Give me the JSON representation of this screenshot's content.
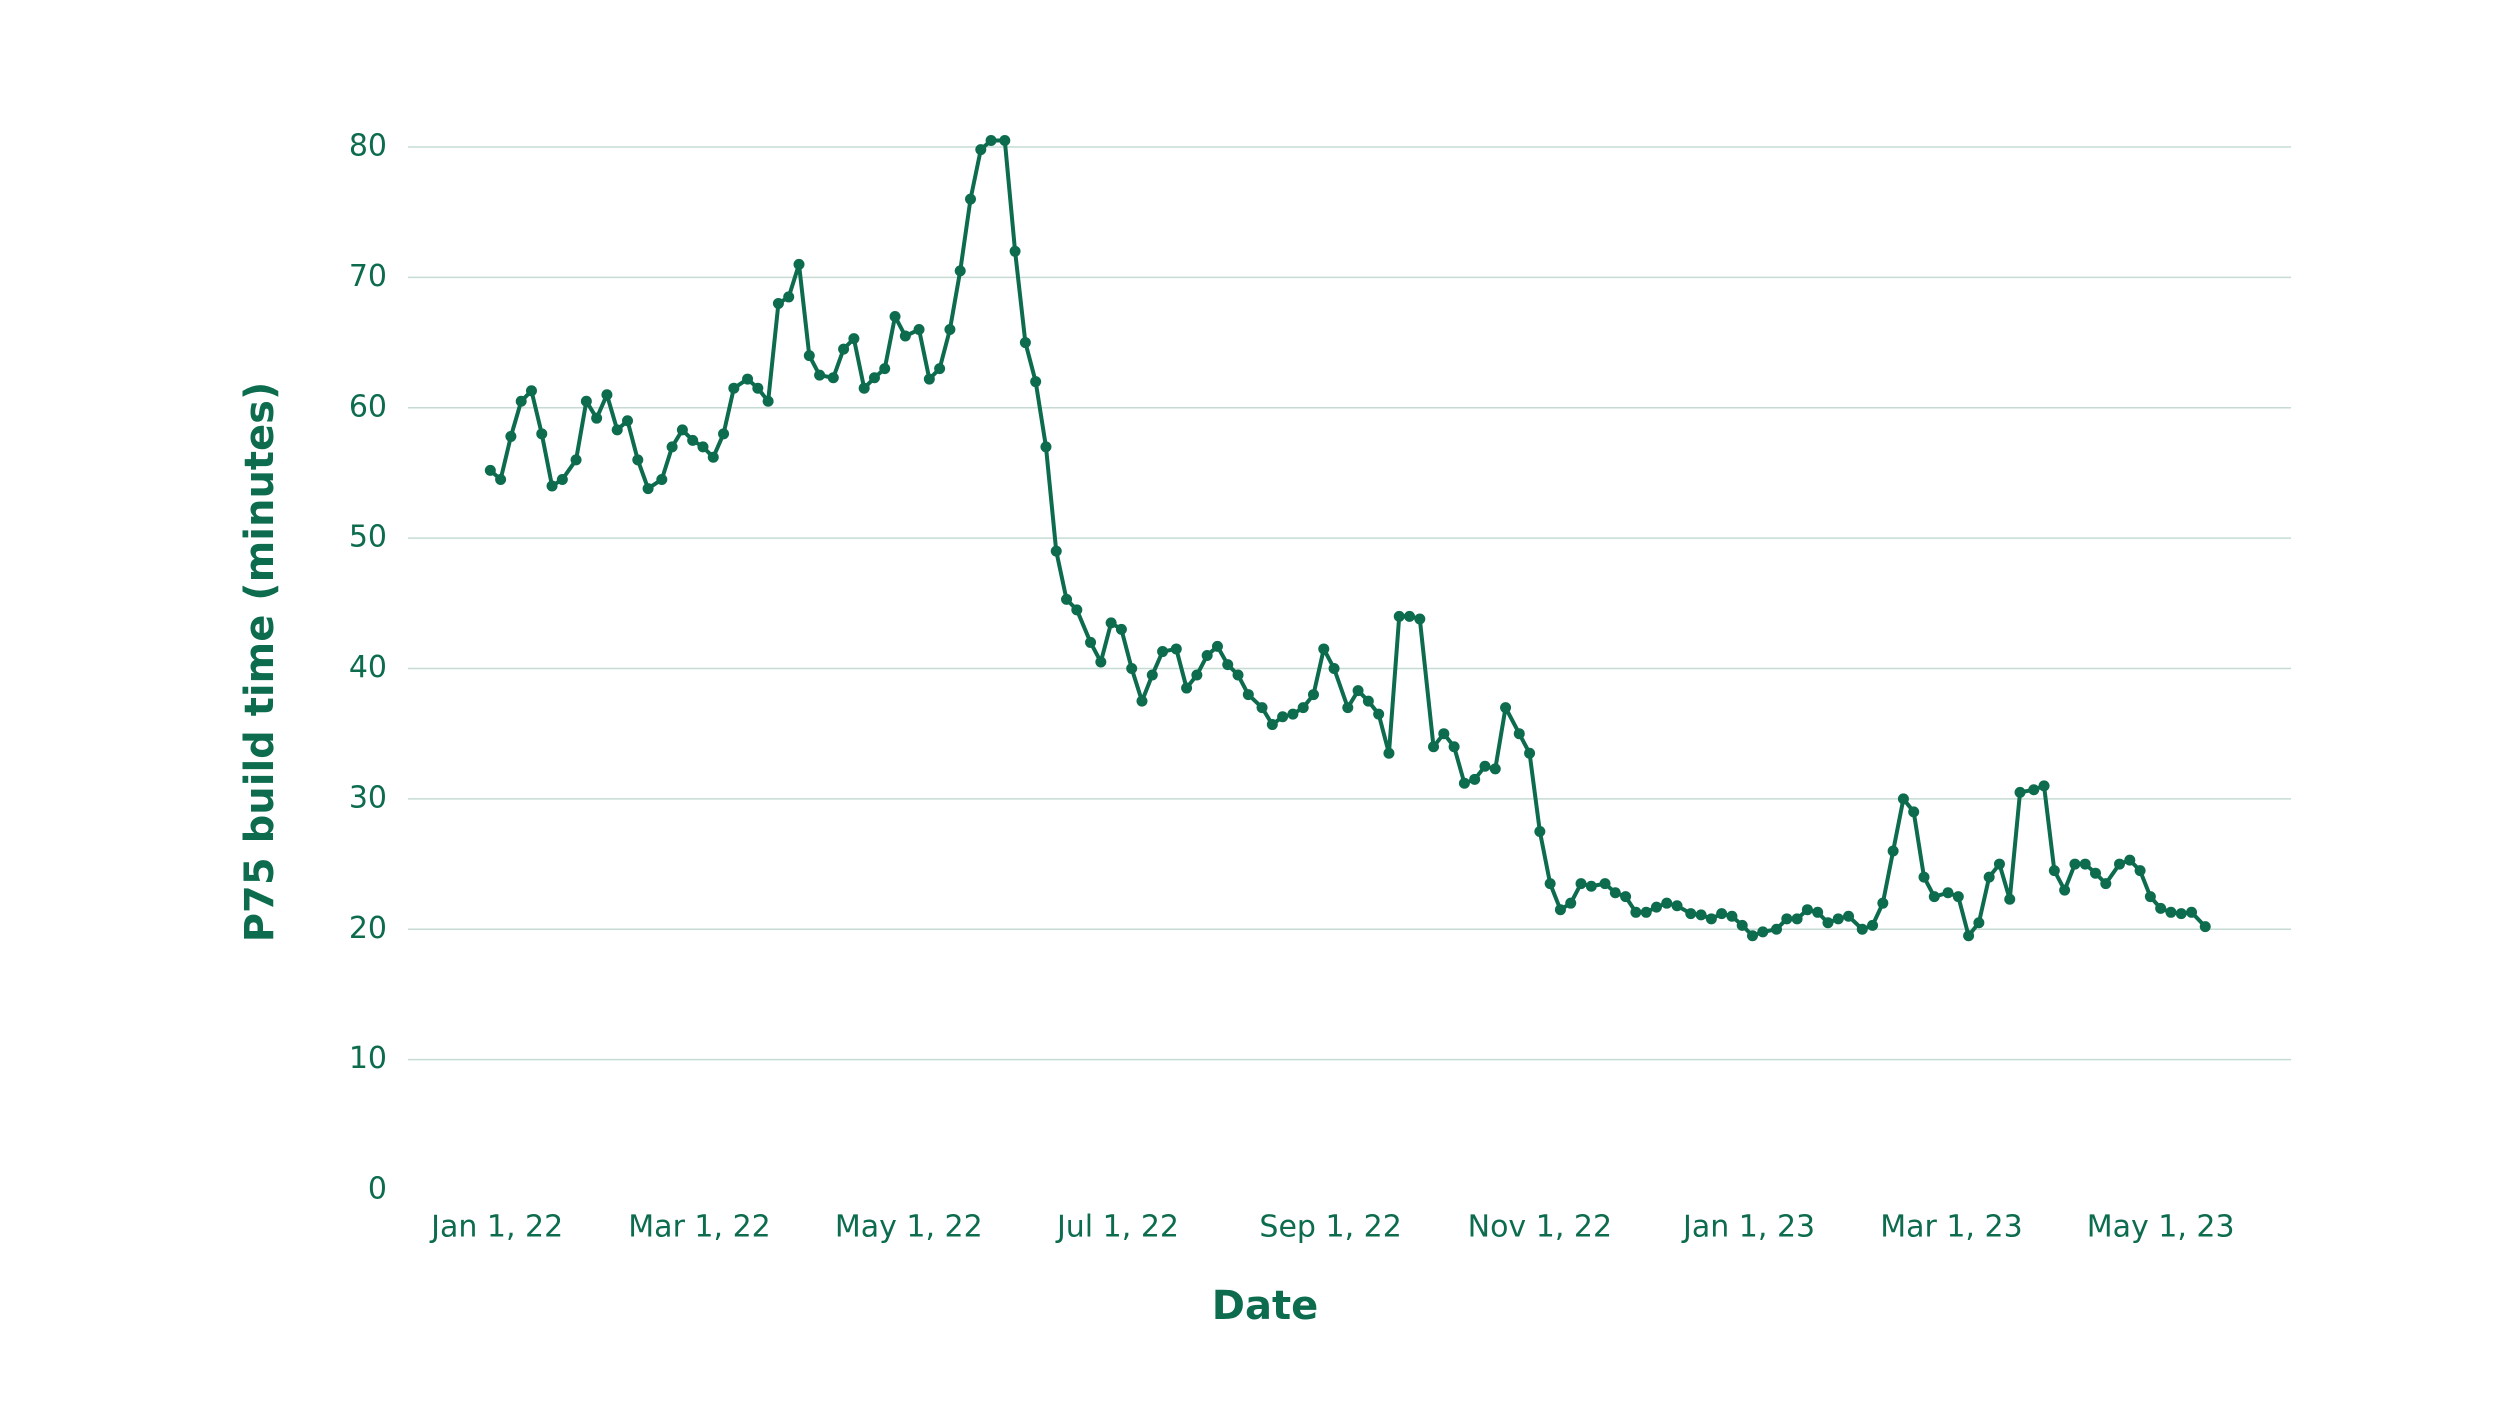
{
  "chart_data": {
    "type": "line",
    "xlabel": "Date",
    "ylabel": "P75 build time (minutes)",
    "x": [
      "2021-12-30",
      "2022-01-02",
      "2022-01-05",
      "2022-01-08",
      "2022-01-11",
      "2022-01-14",
      "2022-01-17",
      "2022-01-20",
      "2022-01-24",
      "2022-01-27",
      "2022-01-30",
      "2022-02-02",
      "2022-02-05",
      "2022-02-08",
      "2022-02-11",
      "2022-02-14",
      "2022-02-18",
      "2022-02-21",
      "2022-02-24",
      "2022-02-27",
      "2022-03-02",
      "2022-03-05",
      "2022-03-08",
      "2022-03-11",
      "2022-03-15",
      "2022-03-18",
      "2022-03-21",
      "2022-03-24",
      "2022-03-27",
      "2022-03-30",
      "2022-04-02",
      "2022-04-05",
      "2022-04-09",
      "2022-04-12",
      "2022-04-15",
      "2022-04-18",
      "2022-04-21",
      "2022-04-24",
      "2022-04-27",
      "2022-04-30",
      "2022-05-04",
      "2022-05-07",
      "2022-05-10",
      "2022-05-13",
      "2022-05-16",
      "2022-05-19",
      "2022-05-22",
      "2022-05-25",
      "2022-05-29",
      "2022-06-01",
      "2022-06-04",
      "2022-06-07",
      "2022-06-10",
      "2022-06-13",
      "2022-06-16",
      "2022-06-19",
      "2022-06-23",
      "2022-06-26",
      "2022-06-29",
      "2022-07-02",
      "2022-07-05",
      "2022-07-08",
      "2022-07-11",
      "2022-07-14",
      "2022-07-18",
      "2022-07-21",
      "2022-07-24",
      "2022-07-27",
      "2022-07-30",
      "2022-08-02",
      "2022-08-05",
      "2022-08-08",
      "2022-08-12",
      "2022-08-15",
      "2022-08-18",
      "2022-08-21",
      "2022-08-24",
      "2022-08-27",
      "2022-08-30",
      "2022-09-02",
      "2022-09-06",
      "2022-09-09",
      "2022-09-12",
      "2022-09-15",
      "2022-09-18",
      "2022-09-21",
      "2022-09-24",
      "2022-09-27",
      "2022-10-01",
      "2022-10-04",
      "2022-10-07",
      "2022-10-10",
      "2022-10-13",
      "2022-10-16",
      "2022-10-19",
      "2022-10-22",
      "2022-10-26",
      "2022-10-29",
      "2022-11-01",
      "2022-11-04",
      "2022-11-07",
      "2022-11-10",
      "2022-11-13",
      "2022-11-16",
      "2022-11-20",
      "2022-11-23",
      "2022-11-26",
      "2022-11-29",
      "2022-12-02",
      "2022-12-05",
      "2022-12-08",
      "2022-12-11",
      "2022-12-15",
      "2022-12-18",
      "2022-12-21",
      "2022-12-24",
      "2022-12-27",
      "2022-12-30",
      "2023-01-02",
      "2023-01-05",
      "2023-01-09",
      "2023-01-12",
      "2023-01-15",
      "2023-01-18",
      "2023-01-21",
      "2023-01-24",
      "2023-01-27",
      "2023-01-30",
      "2023-02-03",
      "2023-02-06",
      "2023-02-09",
      "2023-02-12",
      "2023-02-15",
      "2023-02-18",
      "2023-02-21",
      "2023-02-24",
      "2023-02-28",
      "2023-03-03",
      "2023-03-06",
      "2023-03-09",
      "2023-03-12",
      "2023-03-15",
      "2023-03-18",
      "2023-03-21",
      "2023-03-25",
      "2023-03-28",
      "2023-03-31",
      "2023-04-03",
      "2023-04-06",
      "2023-04-09",
      "2023-04-12",
      "2023-04-15",
      "2023-04-19",
      "2023-04-22",
      "2023-04-25",
      "2023-04-28",
      "2023-05-01",
      "2023-05-04",
      "2023-05-07",
      "2023-05-10",
      "2023-05-14"
    ],
    "series": [
      {
        "name": "P75 build time",
        "color": "#0d6b4e",
        "values": [
          55.2,
          54.5,
          57.8,
          60.5,
          61.3,
          58,
          54,
          54.5,
          56,
          60.5,
          59.2,
          61,
          58.3,
          59,
          56,
          53.8,
          54.5,
          57,
          58.3,
          57.5,
          57,
          56.2,
          58,
          61.5,
          62.2,
          61.5,
          60.5,
          68,
          68.5,
          71,
          64,
          62.5,
          62.3,
          64.5,
          65.3,
          61.5,
          62.3,
          63,
          67,
          65.5,
          66,
          62.2,
          63,
          66,
          70.5,
          76,
          79.8,
          80.5,
          80.5,
          72,
          65,
          62,
          57,
          49,
          45.3,
          44.5,
          42,
          40.5,
          43.5,
          43,
          40,
          37.5,
          39.5,
          41.3,
          41.5,
          38.5,
          39.5,
          41,
          41.7,
          40.3,
          39.5,
          38,
          37,
          35.7,
          36.3,
          36.5,
          37,
          38,
          41.5,
          40,
          37,
          38.3,
          37.5,
          36.5,
          33.5,
          44,
          44,
          43.8,
          34,
          35,
          34,
          31.2,
          31.5,
          32.5,
          32.3,
          37,
          35,
          33.5,
          27.5,
          23.5,
          21.5,
          22,
          23.5,
          23.3,
          23.5,
          22.8,
          22.5,
          21.3,
          21.3,
          21.7,
          22,
          21.8,
          21.2,
          21.1,
          20.8,
          21.2,
          21,
          20.3,
          19.5,
          19.8,
          20,
          20.8,
          20.8,
          21.5,
          21.3,
          20.5,
          20.8,
          21,
          20,
          20.3,
          22,
          26,
          30,
          29,
          24,
          22.5,
          22.8,
          22.5,
          19.5,
          20.5,
          24,
          25,
          22.3,
          30.5,
          30.7,
          31,
          24.5,
          23,
          25,
          25,
          24.3,
          23.5,
          25,
          25.3,
          24.5,
          22.5,
          21.6,
          21.3,
          21.2,
          21.3,
          20.2
        ]
      }
    ],
    "xlim": [
      "2021-12-06",
      "2023-06-08"
    ],
    "xticks": [
      {
        "value": "2022-01-01",
        "label": "Jan 1, 22"
      },
      {
        "value": "2022-03-01",
        "label": "Mar 1, 22"
      },
      {
        "value": "2022-05-01",
        "label": "May 1, 22"
      },
      {
        "value": "2022-07-01",
        "label": "Jul 1, 22"
      },
      {
        "value": "2022-09-01",
        "label": "Sep 1, 22"
      },
      {
        "value": "2022-11-01",
        "label": "Nov 1, 22"
      },
      {
        "value": "2023-01-01",
        "label": "Jan 1, 23"
      },
      {
        "value": "2023-03-01",
        "label": "Mar 1, 23"
      },
      {
        "value": "2023-05-01",
        "label": "May 1, 23"
      }
    ],
    "ylim": [
      0,
      80
    ],
    "yticks": [
      0,
      10,
      20,
      30,
      40,
      50,
      60,
      70,
      80
    ],
    "grid": true,
    "grid_color": "#c5dbd4",
    "text_color": "#0d6b4e"
  }
}
